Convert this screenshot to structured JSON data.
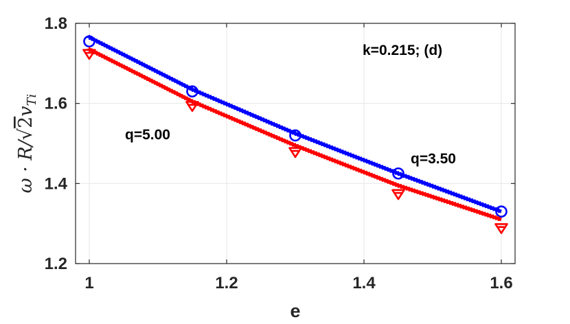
{
  "chart_data": {
    "type": "line",
    "title": "",
    "xlabel": "e",
    "ylabel": "ω · R/√2v_{Ti}",
    "xlim": [
      0.98,
      1.62
    ],
    "ylim": [
      1.2,
      1.8
    ],
    "xticks": [
      "1",
      "1.2",
      "1.4",
      "1.6"
    ],
    "xtick_values": [
      1.0,
      1.2,
      1.4,
      1.6
    ],
    "yticks": [
      "1.2",
      "1.4",
      "1.6",
      "1.8"
    ],
    "ytick_values": [
      1.2,
      1.4,
      1.6,
      1.8
    ],
    "grid": true,
    "annotations": [
      "k=0.215; (d)",
      "q=5.00",
      "q=3.50"
    ],
    "series": [
      {
        "color": "#0000ff",
        "line_style": "solid with plus markers",
        "marker": "circle",
        "x": [
          1.0,
          1.15,
          1.3,
          1.45,
          1.6
        ],
        "line": [
          1.765,
          1.635,
          1.525,
          1.425,
          1.33
        ],
        "markers": [
          1.755,
          1.63,
          1.52,
          1.425,
          1.33
        ]
      },
      {
        "color": "#ff0000",
        "line_style": "solid with plus markers",
        "marker": "triangle-down",
        "x": [
          1.0,
          1.15,
          1.3,
          1.45,
          1.6
        ],
        "line": [
          1.735,
          1.605,
          1.495,
          1.395,
          1.31
        ],
        "markers": [
          1.725,
          1.595,
          1.48,
          1.375,
          1.29
        ]
      }
    ]
  }
}
